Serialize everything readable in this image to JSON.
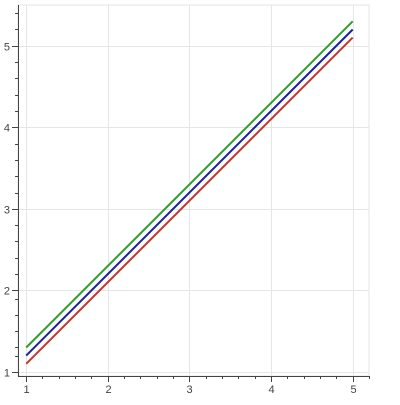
{
  "chart_data": {
    "type": "line",
    "title": "",
    "xlabel": "",
    "ylabel": "",
    "xlim": [
      0.9,
      5.2
    ],
    "ylim": [
      0.95,
      5.5
    ],
    "grid": true,
    "x_ticks": [
      1,
      2,
      3,
      4,
      5
    ],
    "y_ticks": [
      1,
      2,
      3,
      4,
      5
    ],
    "x_tick_labels": [
      "1",
      "2",
      "3",
      "4",
      "5"
    ],
    "y_tick_labels": [
      "1",
      "2",
      "3",
      "4",
      "5"
    ],
    "series": [
      {
        "color": "#2ca02c",
        "x": [
          1,
          5
        ],
        "y": [
          1.3,
          5.3
        ]
      },
      {
        "color": "#1f1f9f",
        "x": [
          1,
          5
        ],
        "y": [
          1.2,
          5.2
        ]
      },
      {
        "color": "#c0392b",
        "x": [
          1,
          5
        ],
        "y": [
          1.1,
          5.1
        ]
      }
    ],
    "colors": {
      "grid": "#e6e6e6",
      "axis": "#444444"
    }
  }
}
